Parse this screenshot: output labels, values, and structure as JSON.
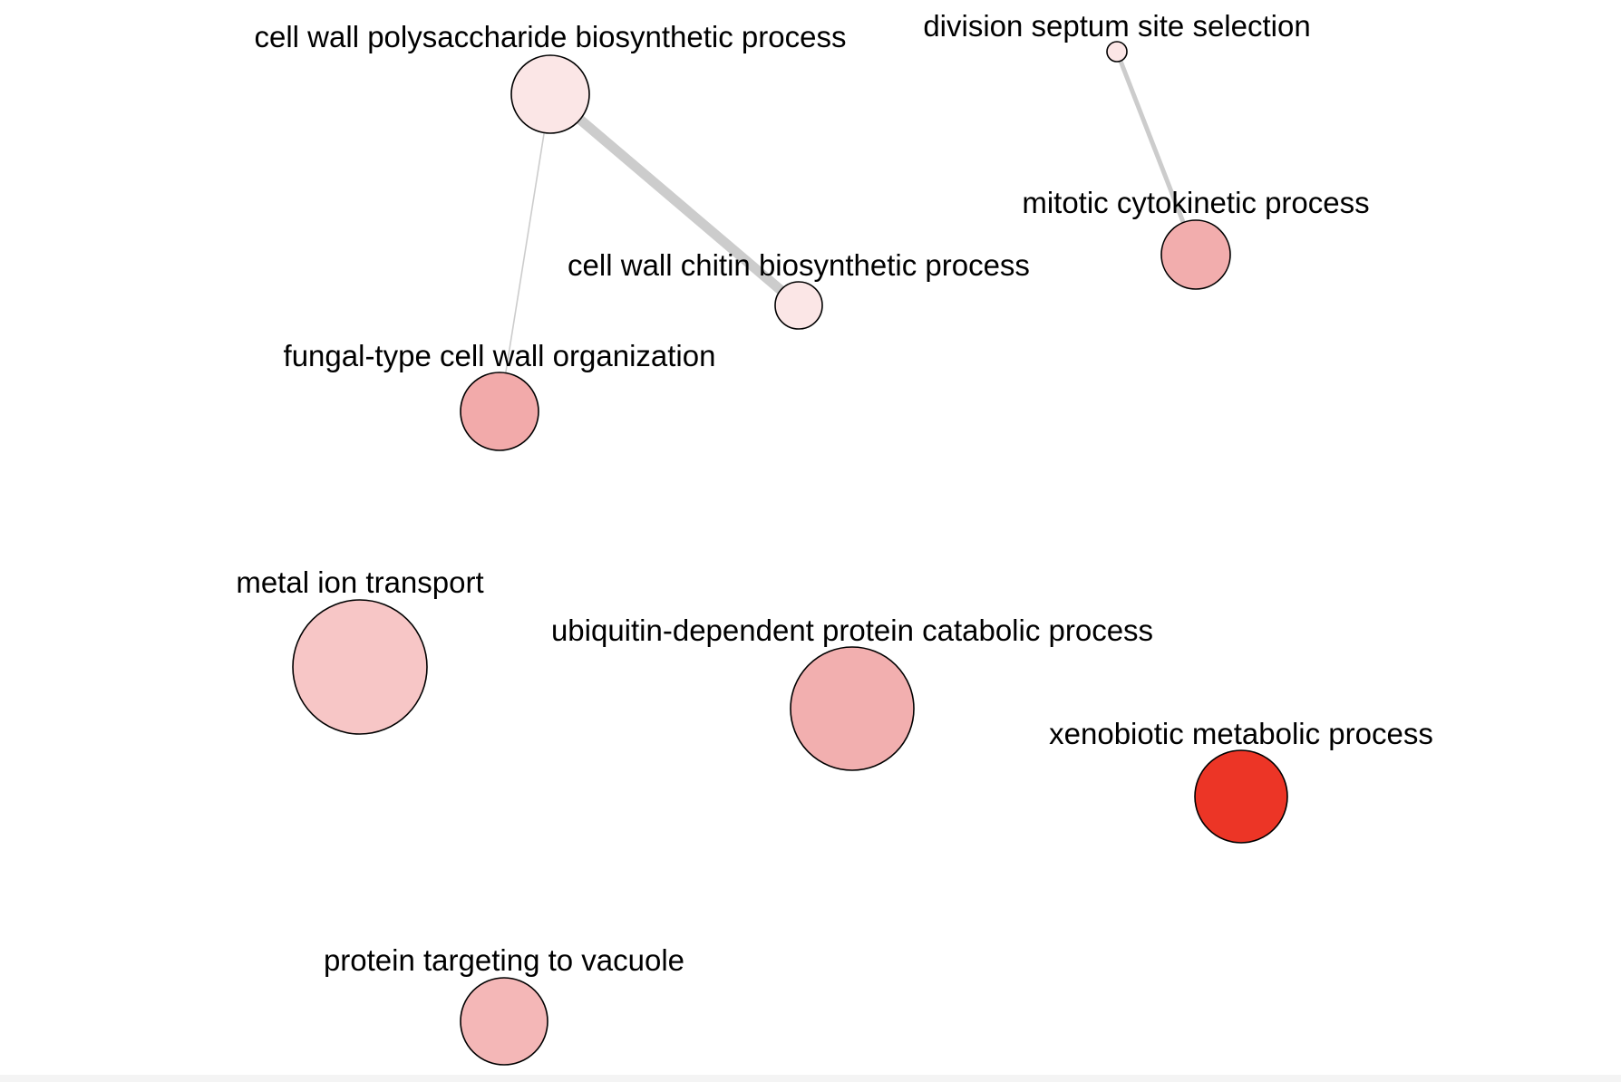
{
  "nodes": [
    {
      "id": "cwps",
      "label": "cell wall polysaccharide biosynthetic process",
      "color": "#fbe6e6"
    },
    {
      "id": "dsss",
      "label": "division septum site selection",
      "color": "#fbe6e6"
    },
    {
      "id": "mcp",
      "label": "mitotic cytokinetic process",
      "color": "#f2adad"
    },
    {
      "id": "cwcb",
      "label": "cell wall chitin biosynthetic process",
      "color": "#fbe6e6"
    },
    {
      "id": "fcwo",
      "label": "fungal-type cell wall organization",
      "color": "#f2aaaa"
    },
    {
      "id": "mit",
      "label": "metal ion transport",
      "color": "#f7c6c6"
    },
    {
      "id": "udpc",
      "label": "ubiquitin-dependent protein catabolic process",
      "color": "#f2afaf"
    },
    {
      "id": "xmp",
      "label": "xenobiotic metabolic process",
      "color": "#ec3526"
    },
    {
      "id": "ptv",
      "label": "protein targeting to vacuole",
      "color": "#f4b7b7"
    }
  ],
  "edges": [
    {
      "source": "cwps",
      "target": "cwcb",
      "weight": "strong"
    },
    {
      "source": "cwps",
      "target": "fcwo",
      "weight": "weak"
    },
    {
      "source": "dsss",
      "target": "mcp",
      "weight": "medium"
    }
  ],
  "colors": {
    "edge": "#cccccc",
    "node_stroke": "#000000",
    "background": "#ffffff"
  }
}
